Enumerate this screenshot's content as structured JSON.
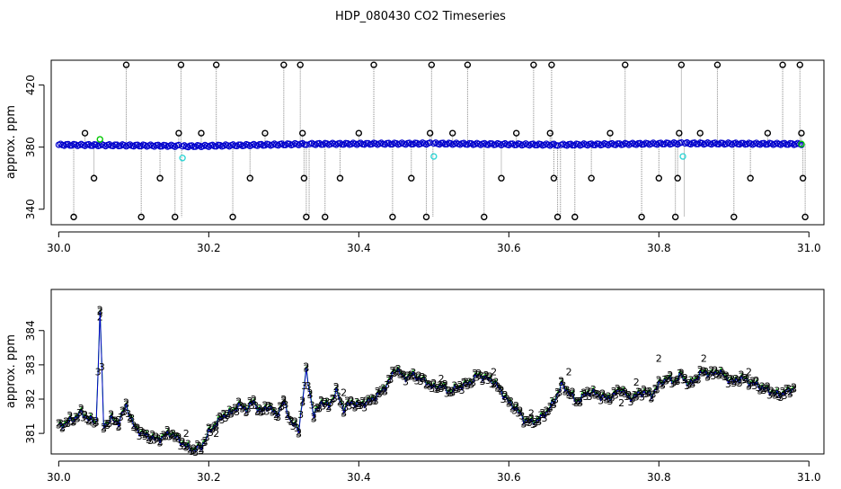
{
  "title": "HDP_080430  CO2 Timeseries",
  "colors": {
    "blue": "#0000cc",
    "cyan": "#33d6d6",
    "green": "#00c800",
    "black": "#000000",
    "gray": "#888888"
  },
  "chart_data": [
    {
      "type": "scatter",
      "ylabel": "approx. ppm",
      "xlabel": "",
      "xlim": [
        29.99,
        31.02
      ],
      "ylim": [
        330,
        436
      ],
      "xticks": [
        30.0,
        30.2,
        30.4,
        30.6,
        30.8,
        31.0
      ],
      "xtick_labels": [
        "30.0",
        "30.2",
        "30.4",
        "30.6",
        "30.8",
        "31.0"
      ],
      "yticks": [
        340,
        380,
        420
      ],
      "ytick_labels": [
        "340",
        "380",
        "420"
      ],
      "baseline_series": {
        "name": "",
        "segments": [
          {
            "x": [
              30.0,
              30.16
            ],
            "y": [
              381.5,
              380.8
            ]
          },
          {
            "x": [
              30.165,
              30.33
            ],
            "y": [
              380.5,
              382.0
            ]
          },
          {
            "x": [
              30.335,
              30.495
            ],
            "y": [
              382.0,
              382.3
            ]
          },
          {
            "x": [
              30.5,
              30.665
            ],
            "y": [
              382.3,
              381.5
            ]
          },
          {
            "x": [
              30.67,
              30.83
            ],
            "y": [
              381.5,
              382.4
            ]
          },
          {
            "x": [
              30.835,
              30.99
            ],
            "y": [
              382.4,
              382.0
            ]
          }
        ]
      },
      "spike_series": {
        "name": "",
        "points": [
          {
            "x": 30.02,
            "y": 335
          },
          {
            "x": 30.035,
            "y": 389
          },
          {
            "x": 30.047,
            "y": 360
          },
          {
            "x": 30.09,
            "y": 433
          },
          {
            "x": 30.11,
            "y": 335
          },
          {
            "x": 30.135,
            "y": 360
          },
          {
            "x": 30.155,
            "y": 335
          },
          {
            "x": 30.16,
            "y": 389
          },
          {
            "x": 30.163,
            "y": 433
          },
          {
            "x": 30.19,
            "y": 389
          },
          {
            "x": 30.21,
            "y": 433
          },
          {
            "x": 30.232,
            "y": 335
          },
          {
            "x": 30.255,
            "y": 360
          },
          {
            "x": 30.275,
            "y": 389
          },
          {
            "x": 30.3,
            "y": 433
          },
          {
            "x": 30.322,
            "y": 433
          },
          {
            "x": 30.325,
            "y": 389
          },
          {
            "x": 30.327,
            "y": 360
          },
          {
            "x": 30.33,
            "y": 335
          },
          {
            "x": 30.355,
            "y": 335
          },
          {
            "x": 30.375,
            "y": 360
          },
          {
            "x": 30.4,
            "y": 389
          },
          {
            "x": 30.42,
            "y": 433
          },
          {
            "x": 30.445,
            "y": 335
          },
          {
            "x": 30.47,
            "y": 360
          },
          {
            "x": 30.49,
            "y": 335
          },
          {
            "x": 30.495,
            "y": 389
          },
          {
            "x": 30.497,
            "y": 433
          },
          {
            "x": 30.525,
            "y": 389
          },
          {
            "x": 30.545,
            "y": 433
          },
          {
            "x": 30.567,
            "y": 335
          },
          {
            "x": 30.59,
            "y": 360
          },
          {
            "x": 30.61,
            "y": 389
          },
          {
            "x": 30.633,
            "y": 433
          },
          {
            "x": 30.655,
            "y": 389
          },
          {
            "x": 30.657,
            "y": 433
          },
          {
            "x": 30.66,
            "y": 360
          },
          {
            "x": 30.665,
            "y": 335
          },
          {
            "x": 30.688,
            "y": 335
          },
          {
            "x": 30.71,
            "y": 360
          },
          {
            "x": 30.735,
            "y": 389
          },
          {
            "x": 30.755,
            "y": 433
          },
          {
            "x": 30.777,
            "y": 335
          },
          {
            "x": 30.8,
            "y": 360
          },
          {
            "x": 30.822,
            "y": 335
          },
          {
            "x": 30.825,
            "y": 360
          },
          {
            "x": 30.827,
            "y": 389
          },
          {
            "x": 30.83,
            "y": 433
          },
          {
            "x": 30.855,
            "y": 389
          },
          {
            "x": 30.878,
            "y": 433
          },
          {
            "x": 30.9,
            "y": 335
          },
          {
            "x": 30.922,
            "y": 360
          },
          {
            "x": 30.945,
            "y": 389
          },
          {
            "x": 30.965,
            "y": 433
          },
          {
            "x": 30.988,
            "y": 433
          },
          {
            "x": 30.99,
            "y": 389
          },
          {
            "x": 30.992,
            "y": 360
          },
          {
            "x": 30.995,
            "y": 335
          }
        ]
      },
      "highlight_points": {
        "cyan": [
          {
            "x": 30.165,
            "y": 373
          },
          {
            "x": 30.5,
            "y": 374
          },
          {
            "x": 30.832,
            "y": 374
          }
        ],
        "green": [
          {
            "x": 30.055,
            "y": 385
          },
          {
            "x": 30.99,
            "y": 382
          }
        ]
      }
    },
    {
      "type": "line",
      "ylabel": "approx. ppm",
      "xlabel": "",
      "xlim": [
        29.99,
        31.02
      ],
      "ylim": [
        380.4,
        385.2
      ],
      "xticks": [
        30.0,
        30.2,
        30.4,
        30.6,
        30.8,
        31.0
      ],
      "xtick_labels": [
        "30.0",
        "30.2",
        "30.4",
        "30.6",
        "30.8",
        "31.0"
      ],
      "yticks": [
        381,
        382,
        383,
        384
      ],
      "ytick_labels": [
        "381",
        "382",
        "383",
        "384"
      ],
      "marker_labels": {
        "blue": "3",
        "green": "2"
      },
      "series": [
        {
          "name": "",
          "x": [
            30.0,
            30.01,
            30.02,
            30.03,
            30.04,
            30.05,
            30.055,
            30.06,
            30.065,
            30.07,
            30.08,
            30.09,
            30.1,
            30.11,
            30.12,
            30.13,
            30.14,
            30.15,
            30.16,
            30.17,
            30.18,
            30.19,
            30.2,
            30.21,
            30.22,
            30.23,
            30.24,
            30.25,
            30.26,
            30.27,
            30.28,
            30.29,
            30.3,
            30.31,
            30.32,
            30.33,
            30.34,
            30.35,
            30.36,
            30.37,
            30.38,
            30.39,
            30.4,
            30.41,
            30.42,
            30.43,
            30.44,
            30.45,
            30.46,
            30.47,
            30.48,
            30.49,
            30.5,
            30.51,
            30.52,
            30.53,
            30.54,
            30.55,
            30.56,
            30.57,
            30.58,
            30.59,
            30.6,
            30.61,
            30.62,
            30.63,
            30.64,
            30.65,
            30.66,
            30.67,
            30.68,
            30.69,
            30.7,
            30.71,
            30.72,
            30.73,
            30.74,
            30.75,
            30.76,
            30.77,
            30.78,
            30.79,
            30.8,
            30.81,
            30.82,
            30.83,
            30.84,
            30.85,
            30.86,
            30.87,
            30.88,
            30.89,
            30.9,
            30.91,
            30.92,
            30.93,
            30.94,
            30.95,
            30.96,
            30.97,
            30.98
          ],
          "y": [
            381.2,
            381.3,
            381.4,
            381.6,
            381.4,
            381.3,
            384.5,
            381.2,
            381.3,
            381.4,
            381.3,
            381.8,
            381.2,
            381.0,
            380.9,
            380.8,
            380.9,
            381.0,
            380.8,
            380.6,
            380.5,
            380.6,
            381.0,
            381.3,
            381.5,
            381.6,
            381.8,
            381.7,
            381.9,
            381.6,
            381.8,
            381.5,
            381.9,
            381.3,
            381.1,
            382.8,
            381.5,
            381.9,
            381.8,
            382.2,
            381.7,
            381.9,
            381.8,
            381.9,
            382.0,
            382.2,
            382.5,
            382.9,
            382.6,
            382.7,
            382.6,
            382.5,
            382.3,
            382.4,
            382.2,
            382.3,
            382.4,
            382.5,
            382.7,
            382.6,
            382.5,
            382.2,
            381.9,
            381.7,
            381.4,
            381.3,
            381.4,
            381.6,
            381.9,
            382.4,
            382.2,
            381.9,
            382.1,
            382.2,
            382.1,
            382.0,
            382.1,
            382.3,
            382.0,
            382.1,
            382.2,
            382.1,
            382.4,
            382.6,
            382.5,
            382.7,
            382.4,
            382.6,
            382.8,
            382.7,
            382.8,
            382.6,
            382.5,
            382.6,
            382.5,
            382.4,
            382.3,
            382.2,
            382.1,
            382.2,
            382.3
          ]
        }
      ],
      "green_extras": [
        {
          "x": 30.055,
          "y": 384.4
        },
        {
          "x": 30.08,
          "y": 381.4
        },
        {
          "x": 30.17,
          "y": 381.0
        },
        {
          "x": 30.21,
          "y": 381.0
        },
        {
          "x": 30.3,
          "y": 382.0
        },
        {
          "x": 30.38,
          "y": 382.2
        },
        {
          "x": 30.51,
          "y": 382.6
        },
        {
          "x": 30.58,
          "y": 382.8
        },
        {
          "x": 30.63,
          "y": 381.6
        },
        {
          "x": 30.68,
          "y": 382.8
        },
        {
          "x": 30.75,
          "y": 381.9
        },
        {
          "x": 30.77,
          "y": 382.5
        },
        {
          "x": 30.8,
          "y": 383.2
        },
        {
          "x": 30.86,
          "y": 383.2
        },
        {
          "x": 30.92,
          "y": 382.8
        }
      ]
    }
  ]
}
